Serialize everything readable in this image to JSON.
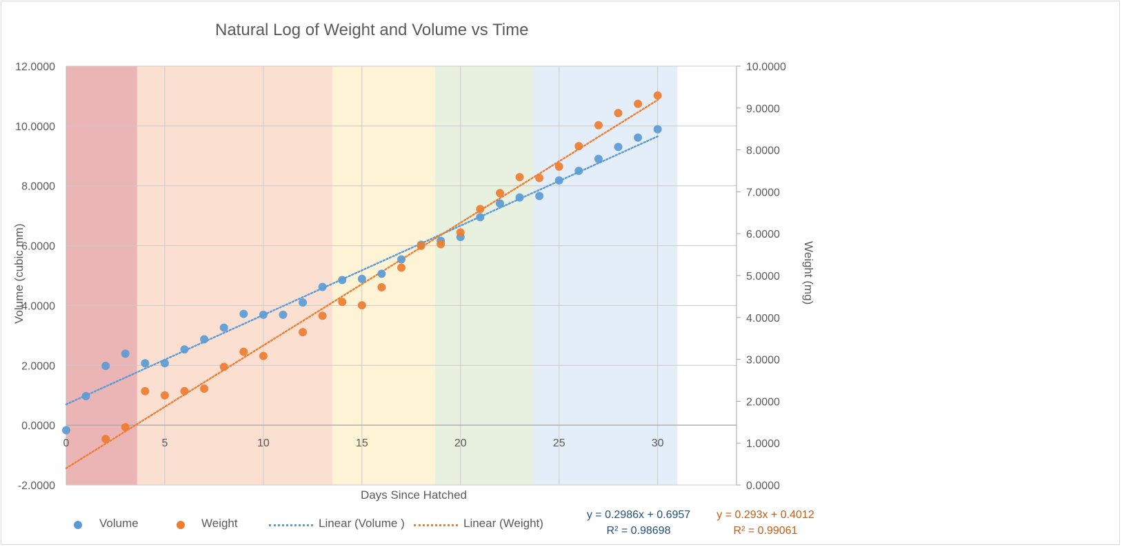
{
  "chart_data": {
    "type": "scatter",
    "title": "Natural Log of Weight and Volume vs Time",
    "xlabel": "Days Since Hatched",
    "ylabel": "Volume (cubic mm)",
    "y2label": "Weight (mg)",
    "xlim": [
      0,
      34
    ],
    "ylim": [
      -2,
      12
    ],
    "y2lim": [
      0,
      10
    ],
    "x_ticks": [
      0,
      5,
      10,
      15,
      20,
      25,
      30
    ],
    "y_ticks": [
      -2,
      0,
      2,
      4,
      6,
      8,
      10,
      12
    ],
    "y_tick_labels": [
      "-2.0000",
      "0.0000",
      "2.0000",
      "4.0000",
      "6.0000",
      "8.0000",
      "10.0000",
      "12.0000"
    ],
    "y2_ticks": [
      0,
      1,
      2,
      3,
      4,
      5,
      6,
      7,
      8,
      9,
      10
    ],
    "y2_tick_labels": [
      "0.0000",
      "1.0000",
      "2.0000",
      "3.0000",
      "4.0000",
      "5.0000",
      "6.0000",
      "7.0000",
      "8.0000",
      "9.0000",
      "10.0000"
    ],
    "grid": true,
    "bands": [
      {
        "from": 0,
        "to": 3.6,
        "color": "#ebb5b6"
      },
      {
        "from": 3.6,
        "to": 13.5,
        "color": "#fbe0d2"
      },
      {
        "from": 13.5,
        "to": 18.7,
        "color": "#fef3d4"
      },
      {
        "from": 18.7,
        "to": 23.7,
        "color": "#e8f1e0"
      },
      {
        "from": 23.7,
        "to": 31,
        "color": "#e4eef8"
      }
    ],
    "series": [
      {
        "name": "Volume",
        "axis": "left",
        "color": "#5b9bd5",
        "x": [
          0,
          1,
          2,
          3,
          4,
          5,
          6,
          7,
          8,
          9,
          10,
          11,
          12,
          13,
          14,
          15,
          16,
          17,
          18,
          19,
          20,
          21,
          22,
          23,
          24,
          25,
          26,
          27,
          28,
          29,
          30
        ],
        "y": [
          -0.17,
          0.97,
          1.98,
          2.39,
          2.07,
          2.07,
          2.53,
          2.87,
          3.26,
          3.72,
          3.69,
          3.69,
          4.1,
          4.62,
          4.85,
          4.89,
          5.06,
          5.54,
          6.03,
          6.16,
          6.29,
          6.95,
          7.41,
          7.61,
          7.66,
          8.18,
          8.5,
          8.9,
          9.3,
          9.61,
          9.89
        ]
      },
      {
        "name": "Weight",
        "axis": "right",
        "color": "#ed7d31",
        "x": [
          2,
          3,
          4,
          5,
          6,
          7,
          8,
          9,
          10,
          12,
          13,
          14,
          15,
          16,
          17,
          18,
          19,
          20,
          21,
          22,
          23,
          24,
          25,
          26,
          27,
          28,
          29,
          30
        ],
        "y": [
          1.1,
          1.38,
          2.24,
          2.14,
          2.24,
          2.3,
          2.82,
          3.18,
          3.08,
          3.65,
          4.04,
          4.37,
          4.29,
          4.72,
          5.19,
          5.71,
          5.75,
          6.03,
          6.59,
          6.97,
          7.35,
          7.33,
          7.6,
          8.09,
          8.59,
          8.88,
          9.1,
          9.3
        ]
      }
    ],
    "trendlines": [
      {
        "name": "Linear  (Volume )",
        "axis": "left",
        "slope": 0.2986,
        "intercept": 0.6957,
        "x_range": [
          0,
          30
        ],
        "color": "#5b9bd5",
        "equation": "y = 0.2986x + 0.6957",
        "r2": "R² = 0.98698",
        "eq_color": "#1f4e79"
      },
      {
        "name": "Linear  (Weight)",
        "axis": "right",
        "slope": 0.293,
        "intercept": 0.4012,
        "x_range": [
          0,
          30
        ],
        "color": "#ed7d31",
        "equation": "y = 0.293x + 0.4012",
        "r2": "R² = 0.99061",
        "eq_color": "#c55a11"
      }
    ],
    "legend_position": "bottom"
  }
}
